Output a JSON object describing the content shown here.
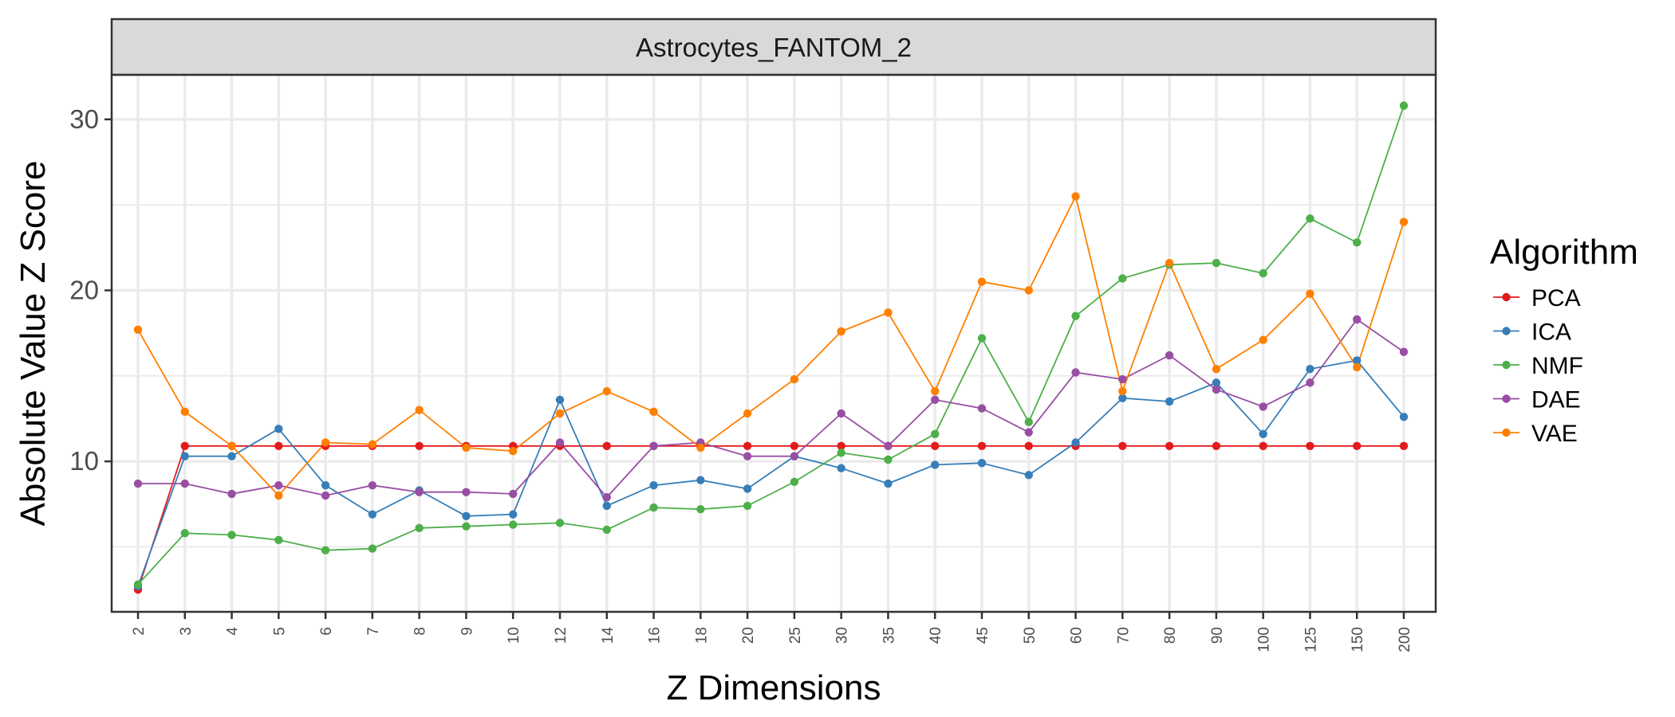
{
  "chart_data": {
    "type": "line",
    "title": "Astrocytes_FANTOM_2",
    "xlabel": "Z Dimensions",
    "ylabel": "Absolute Value Z Score",
    "ylim": [
      1.2,
      32.6
    ],
    "yticks": [
      10,
      20,
      30
    ],
    "grid": true,
    "legend": {
      "title": "Algorithm",
      "position": "right"
    },
    "categories": [
      "2",
      "3",
      "4",
      "5",
      "6",
      "7",
      "8",
      "9",
      "10",
      "12",
      "14",
      "16",
      "18",
      "20",
      "25",
      "30",
      "35",
      "40",
      "45",
      "50",
      "60",
      "70",
      "80",
      "90",
      "100",
      "125",
      "150",
      "200"
    ],
    "series": [
      {
        "name": "PCA",
        "color": "#e41a1c",
        "values": [
          2.5,
          10.9,
          10.9,
          10.9,
          10.9,
          10.9,
          10.9,
          10.9,
          10.9,
          10.9,
          10.9,
          10.9,
          10.9,
          10.9,
          10.9,
          10.9,
          10.9,
          10.9,
          10.9,
          10.9,
          10.9,
          10.9,
          10.9,
          10.9,
          10.9,
          10.9,
          10.9,
          10.9
        ]
      },
      {
        "name": "ICA",
        "color": "#377eb8",
        "values": [
          2.7,
          10.3,
          10.3,
          11.9,
          8.6,
          6.9,
          8.3,
          6.8,
          6.9,
          13.6,
          7.4,
          8.6,
          8.9,
          8.4,
          10.3,
          9.6,
          8.7,
          9.8,
          9.9,
          9.2,
          11.1,
          13.7,
          13.5,
          14.6,
          11.6,
          15.4,
          15.9,
          12.6
        ]
      },
      {
        "name": "NMF",
        "color": "#4daf4a",
        "values": [
          2.8,
          5.8,
          5.7,
          5.4,
          4.8,
          4.9,
          6.1,
          6.2,
          6.3,
          6.4,
          6.0,
          7.3,
          7.2,
          7.4,
          8.8,
          10.5,
          10.1,
          11.6,
          17.2,
          12.3,
          18.5,
          20.7,
          21.5,
          21.6,
          21.0,
          24.2,
          22.8,
          30.8
        ]
      },
      {
        "name": "DAE",
        "color": "#984ea3",
        "values": [
          8.7,
          8.7,
          8.1,
          8.6,
          8.0,
          8.6,
          8.2,
          8.2,
          8.1,
          11.1,
          7.9,
          10.9,
          11.1,
          10.3,
          10.3,
          12.8,
          10.9,
          13.6,
          13.1,
          11.7,
          15.2,
          14.8,
          16.2,
          14.2,
          13.2,
          14.6,
          18.3,
          16.4
        ]
      },
      {
        "name": "VAE",
        "color": "#ff7f00",
        "values": [
          17.7,
          12.9,
          10.9,
          8.0,
          11.1,
          11.0,
          13.0,
          10.8,
          10.6,
          12.8,
          14.1,
          12.9,
          10.8,
          12.8,
          14.8,
          17.6,
          18.7,
          14.1,
          20.5,
          20.0,
          25.5,
          14.1,
          21.6,
          15.4,
          17.1,
          19.8,
          15.5,
          24.0
        ]
      }
    ]
  }
}
